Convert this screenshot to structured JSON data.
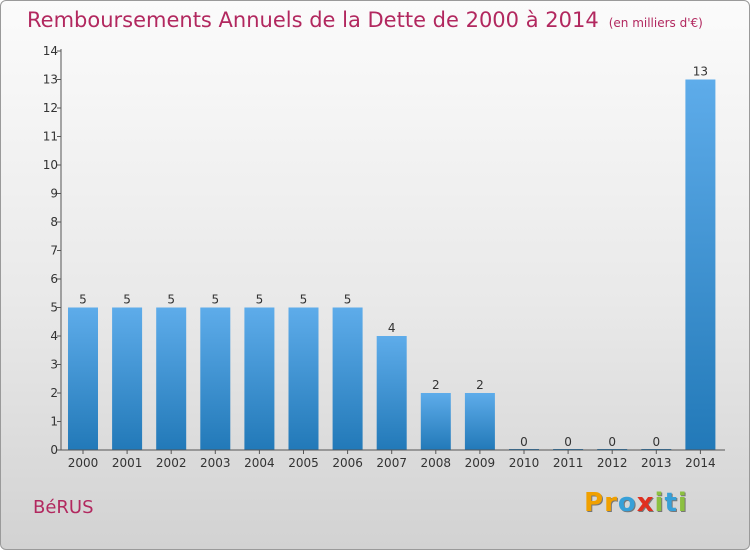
{
  "title": "Remboursements Annuels de la Dette de 2000 à 2014",
  "unit": "(en milliers d'€)",
  "town": "BéRUS",
  "logo": {
    "letters": [
      "P",
      "r",
      "o",
      "x",
      "i",
      "t",
      "i"
    ],
    "colors": [
      "#f0a000",
      "#f0a000",
      "#37a0d8",
      "#e03020",
      "#8cc040",
      "#37a0d8",
      "#8cc040"
    ]
  },
  "colors": {
    "title": "#b2285f",
    "bar_top": "#5eacea",
    "bar_bottom": "#2279b8"
  },
  "chart_data": {
    "type": "bar",
    "categories": [
      "2000",
      "2001",
      "2002",
      "2003",
      "2004",
      "2005",
      "2006",
      "2007",
      "2008",
      "2009",
      "2010",
      "2011",
      "2012",
      "2013",
      "2014"
    ],
    "values": [
      5,
      5,
      5,
      5,
      5,
      5,
      5,
      4,
      2,
      2,
      0,
      0,
      0,
      0,
      13
    ],
    "data_labels": [
      "5",
      "5",
      "5",
      "5",
      "5",
      "5",
      "5",
      "4",
      "2",
      "2",
      "0",
      "0",
      "0",
      "0",
      "13"
    ],
    "yticks": [
      "0",
      "1",
      "2",
      "3",
      "4",
      "5",
      "6",
      "7",
      "8",
      "9",
      "10",
      "11",
      "12",
      "13",
      "14"
    ],
    "ylim": [
      0,
      14
    ],
    "grid": false,
    "legend": "none"
  }
}
